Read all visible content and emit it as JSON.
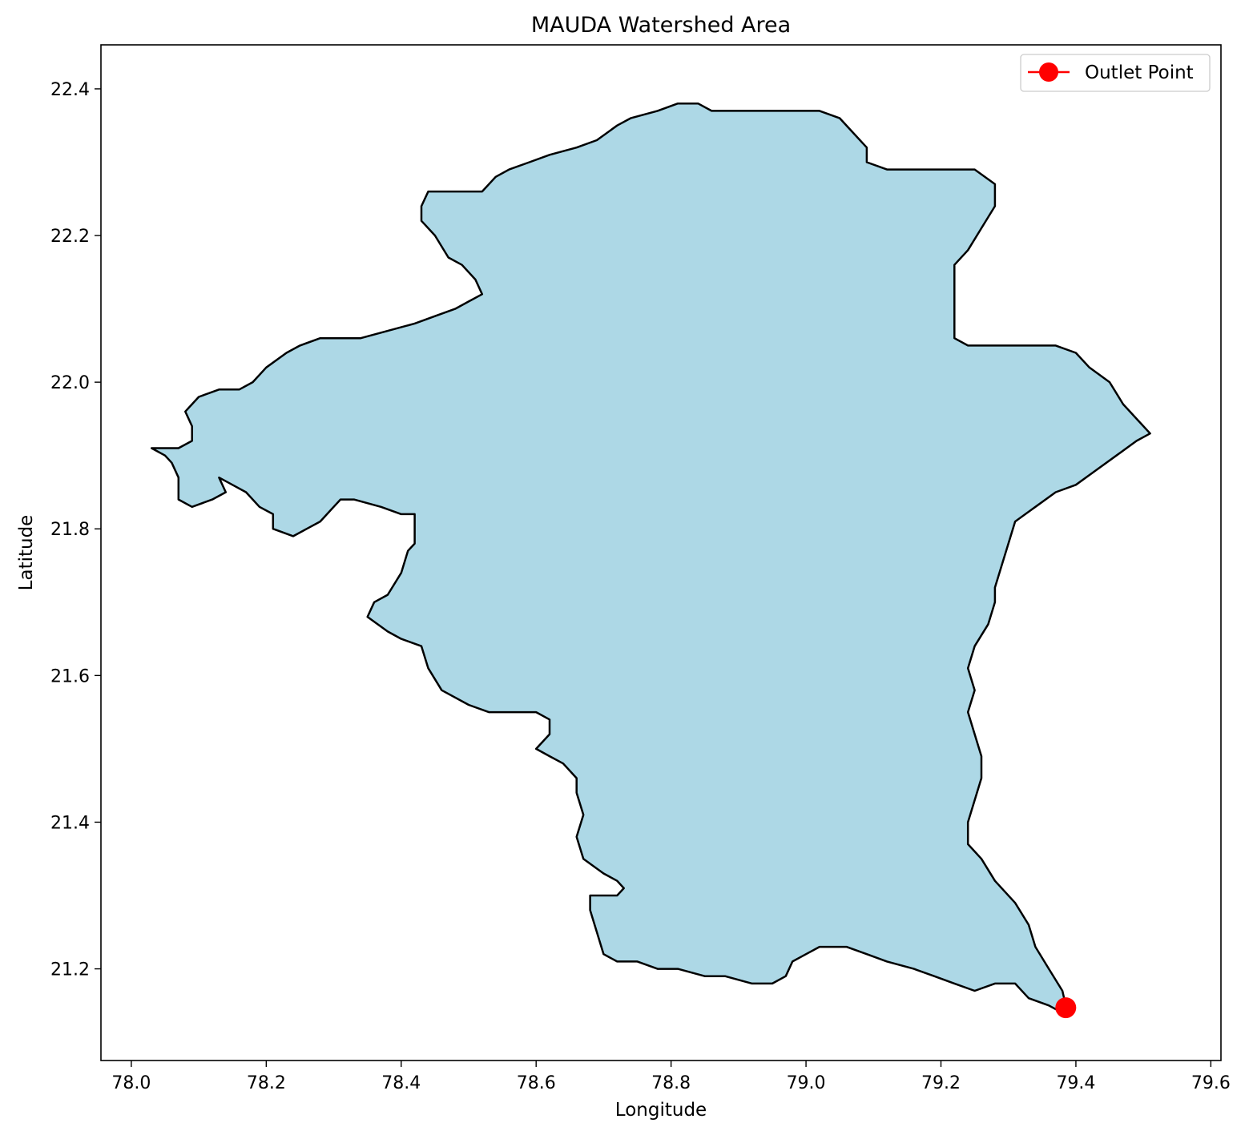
{
  "chart_data": {
    "type": "map",
    "title": "MAUDA Watershed Area",
    "xlabel": "Longitude",
    "ylabel": "Latitude",
    "xlim": [
      77.955,
      79.615
    ],
    "ylim": [
      21.075,
      22.46
    ],
    "xticks": [
      78.0,
      78.2,
      78.4,
      78.6,
      78.8,
      79.0,
      79.2,
      79.4,
      79.6
    ],
    "xtick_labels": [
      "78.0",
      "78.2",
      "78.4",
      "78.6",
      "78.8",
      "79.0",
      "79.2",
      "79.4",
      "79.6"
    ],
    "yticks": [
      21.2,
      21.4,
      21.6,
      21.8,
      22.0,
      22.2,
      22.4
    ],
    "ytick_labels": [
      "21.2",
      "21.4",
      "21.6",
      "21.8",
      "22.0",
      "22.2",
      "22.4"
    ],
    "grid": false,
    "legend_position": "top-right",
    "legend": [
      {
        "label": "Outlet Point",
        "color": "#ff0000",
        "marker": "circle"
      }
    ],
    "watershed": {
      "fill": "#add8e6",
      "edge": "#000000",
      "boundary": [
        [
          78.03,
          21.91
        ],
        [
          78.05,
          21.9
        ],
        [
          78.06,
          21.89
        ],
        [
          78.07,
          21.87
        ],
        [
          78.07,
          21.84
        ],
        [
          78.09,
          21.83
        ],
        [
          78.12,
          21.84
        ],
        [
          78.14,
          21.85
        ],
        [
          78.13,
          21.87
        ],
        [
          78.15,
          21.86
        ],
        [
          78.17,
          21.85
        ],
        [
          78.19,
          21.83
        ],
        [
          78.21,
          21.82
        ],
        [
          78.21,
          21.8
        ],
        [
          78.24,
          21.79
        ],
        [
          78.26,
          21.8
        ],
        [
          78.28,
          21.81
        ],
        [
          78.3,
          21.83
        ],
        [
          78.31,
          21.84
        ],
        [
          78.33,
          21.84
        ],
        [
          78.37,
          21.83
        ],
        [
          78.4,
          21.82
        ],
        [
          78.42,
          21.82
        ],
        [
          78.42,
          21.8
        ],
        [
          78.42,
          21.78
        ],
        [
          78.41,
          21.77
        ],
        [
          78.4,
          21.74
        ],
        [
          78.38,
          21.71
        ],
        [
          78.36,
          21.7
        ],
        [
          78.35,
          21.68
        ],
        [
          78.38,
          21.66
        ],
        [
          78.4,
          21.65
        ],
        [
          78.43,
          21.64
        ],
        [
          78.44,
          21.61
        ],
        [
          78.46,
          21.58
        ],
        [
          78.5,
          21.56
        ],
        [
          78.53,
          21.55
        ],
        [
          78.57,
          21.55
        ],
        [
          78.6,
          21.55
        ],
        [
          78.62,
          21.54
        ],
        [
          78.62,
          21.52
        ],
        [
          78.6,
          21.5
        ],
        [
          78.62,
          21.49
        ],
        [
          78.64,
          21.48
        ],
        [
          78.66,
          21.46
        ],
        [
          78.66,
          21.44
        ],
        [
          78.67,
          21.41
        ],
        [
          78.66,
          21.38
        ],
        [
          78.67,
          21.35
        ],
        [
          78.7,
          21.33
        ],
        [
          78.72,
          21.32
        ],
        [
          78.73,
          21.31
        ],
        [
          78.72,
          21.3
        ],
        [
          78.68,
          21.3
        ],
        [
          78.68,
          21.28
        ],
        [
          78.69,
          21.25
        ],
        [
          78.7,
          21.22
        ],
        [
          78.72,
          21.21
        ],
        [
          78.75,
          21.21
        ],
        [
          78.78,
          21.2
        ],
        [
          78.81,
          21.2
        ],
        [
          78.85,
          21.19
        ],
        [
          78.88,
          21.19
        ],
        [
          78.92,
          21.18
        ],
        [
          78.95,
          21.18
        ],
        [
          78.97,
          21.19
        ],
        [
          78.98,
          21.21
        ],
        [
          79.0,
          21.22
        ],
        [
          79.02,
          21.23
        ],
        [
          79.06,
          21.23
        ],
        [
          79.09,
          21.22
        ],
        [
          79.12,
          21.21
        ],
        [
          79.16,
          21.2
        ],
        [
          79.19,
          21.19
        ],
        [
          79.22,
          21.18
        ],
        [
          79.25,
          21.17
        ],
        [
          79.28,
          21.18
        ],
        [
          79.31,
          21.18
        ],
        [
          79.33,
          21.16
        ],
        [
          79.36,
          21.15
        ],
        [
          79.38,
          21.14
        ],
        [
          79.385,
          21.15
        ],
        [
          79.38,
          21.17
        ],
        [
          79.36,
          21.2
        ],
        [
          79.34,
          21.23
        ],
        [
          79.33,
          21.26
        ],
        [
          79.31,
          21.29
        ],
        [
          79.28,
          21.32
        ],
        [
          79.26,
          21.35
        ],
        [
          79.24,
          21.37
        ],
        [
          79.24,
          21.4
        ],
        [
          79.25,
          21.43
        ],
        [
          79.26,
          21.46
        ],
        [
          79.26,
          21.49
        ],
        [
          79.25,
          21.52
        ],
        [
          79.24,
          21.55
        ],
        [
          79.25,
          21.58
        ],
        [
          79.24,
          21.61
        ],
        [
          79.25,
          21.64
        ],
        [
          79.27,
          21.67
        ],
        [
          79.28,
          21.7
        ],
        [
          79.28,
          21.72
        ],
        [
          79.29,
          21.75
        ],
        [
          79.3,
          21.78
        ],
        [
          79.31,
          21.81
        ],
        [
          79.34,
          21.83
        ],
        [
          79.37,
          21.85
        ],
        [
          79.4,
          21.86
        ],
        [
          79.43,
          21.88
        ],
        [
          79.46,
          21.9
        ],
        [
          79.49,
          21.92
        ],
        [
          79.51,
          21.93
        ],
        [
          79.49,
          21.95
        ],
        [
          79.47,
          21.97
        ],
        [
          79.45,
          22.0
        ],
        [
          79.42,
          22.02
        ],
        [
          79.4,
          22.04
        ],
        [
          79.37,
          22.05
        ],
        [
          79.34,
          22.05
        ],
        [
          79.31,
          22.05
        ],
        [
          79.28,
          22.05
        ],
        [
          79.24,
          22.05
        ],
        [
          79.22,
          22.06
        ],
        [
          79.22,
          22.1
        ],
        [
          79.22,
          22.13
        ],
        [
          79.22,
          22.16
        ],
        [
          79.24,
          22.18
        ],
        [
          79.26,
          22.21
        ],
        [
          79.28,
          22.24
        ],
        [
          79.28,
          22.27
        ],
        [
          79.25,
          22.29
        ],
        [
          79.22,
          22.29
        ],
        [
          79.19,
          22.29
        ],
        [
          79.15,
          22.29
        ],
        [
          79.12,
          22.29
        ],
        [
          79.09,
          22.3
        ],
        [
          79.09,
          22.32
        ],
        [
          79.07,
          22.34
        ],
        [
          79.05,
          22.36
        ],
        [
          79.02,
          22.37
        ],
        [
          78.98,
          22.37
        ],
        [
          78.94,
          22.37
        ],
        [
          78.9,
          22.37
        ],
        [
          78.86,
          22.37
        ],
        [
          78.84,
          22.38
        ],
        [
          78.81,
          22.38
        ],
        [
          78.78,
          22.37
        ],
        [
          78.74,
          22.36
        ],
        [
          78.72,
          22.35
        ],
        [
          78.69,
          22.33
        ],
        [
          78.66,
          22.32
        ],
        [
          78.62,
          22.31
        ],
        [
          78.59,
          22.3
        ],
        [
          78.56,
          22.29
        ],
        [
          78.54,
          22.28
        ],
        [
          78.52,
          22.26
        ],
        [
          78.48,
          22.26
        ],
        [
          78.44,
          22.26
        ],
        [
          78.43,
          22.24
        ],
        [
          78.43,
          22.22
        ],
        [
          78.45,
          22.2
        ],
        [
          78.47,
          22.17
        ],
        [
          78.49,
          22.16
        ],
        [
          78.51,
          22.14
        ],
        [
          78.52,
          22.12
        ],
        [
          78.5,
          22.11
        ],
        [
          78.48,
          22.1
        ],
        [
          78.45,
          22.09
        ],
        [
          78.42,
          22.08
        ],
        [
          78.38,
          22.07
        ],
        [
          78.34,
          22.06
        ],
        [
          78.31,
          22.06
        ],
        [
          78.28,
          22.06
        ],
        [
          78.25,
          22.05
        ],
        [
          78.23,
          22.04
        ],
        [
          78.2,
          22.02
        ],
        [
          78.18,
          22.0
        ],
        [
          78.16,
          21.99
        ],
        [
          78.13,
          21.99
        ],
        [
          78.1,
          21.98
        ],
        [
          78.09,
          21.97
        ],
        [
          78.08,
          21.96
        ],
        [
          78.09,
          21.94
        ],
        [
          78.09,
          21.92
        ],
        [
          78.07,
          21.91
        ],
        [
          78.04,
          21.91
        ]
      ]
    },
    "outlet_point": {
      "lon": 79.385,
      "lat": 21.147,
      "label": "Outlet Point"
    }
  }
}
